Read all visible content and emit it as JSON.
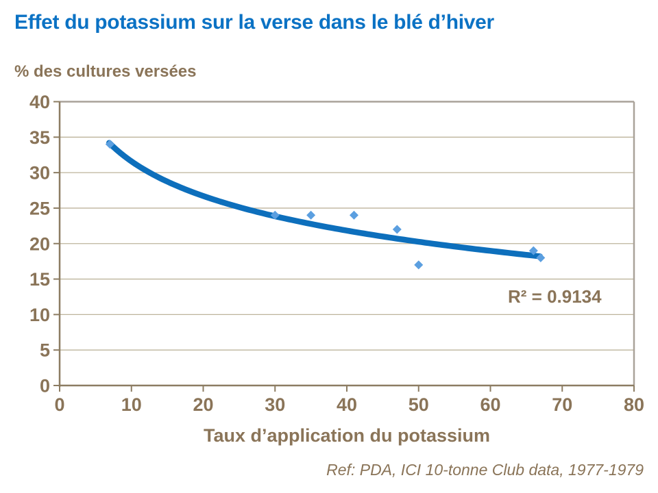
{
  "chart_data": {
    "type": "scatter",
    "title": "Effet du potassium sur la verse dans le blé d’hiver",
    "y_axis_title": "% des cultures versées",
    "x_axis_title": "Taux d’application du potassium",
    "annotation": "R² = 0.9134",
    "reference": "Ref: PDA, ICI 10-tonne Club data, 1977-1979",
    "xlim": [
      0,
      80
    ],
    "ylim": [
      0,
      40
    ],
    "x_ticks": [
      0,
      10,
      20,
      30,
      40,
      50,
      60,
      70,
      80
    ],
    "y_ticks": [
      0,
      5,
      10,
      15,
      20,
      25,
      30,
      35,
      40
    ],
    "grid": true,
    "legend": false,
    "points": [
      {
        "x": 7,
        "y": 34
      },
      {
        "x": 30,
        "y": 24
      },
      {
        "x": 35,
        "y": 24
      },
      {
        "x": 41,
        "y": 24
      },
      {
        "x": 47,
        "y": 22
      },
      {
        "x": 50,
        "y": 17
      },
      {
        "x": 66,
        "y": 19
      },
      {
        "x": 67,
        "y": 18
      }
    ],
    "trendline": {
      "type": "logarithmic",
      "equation": "y = 47.8 - 7.04*ln(x)",
      "a": 47.8,
      "b": -7.04,
      "x_start": 6.9,
      "x_end": 67.2,
      "r_squared": 0.9134
    },
    "colors": {
      "title": "#0B72C4",
      "text": "#8A7458",
      "trend": "#0D6FBC",
      "marker": "#5B9FE0",
      "gridline": "#BDB49B",
      "plot_border": "#A9A299",
      "axis_line": "#8C7C62"
    }
  }
}
